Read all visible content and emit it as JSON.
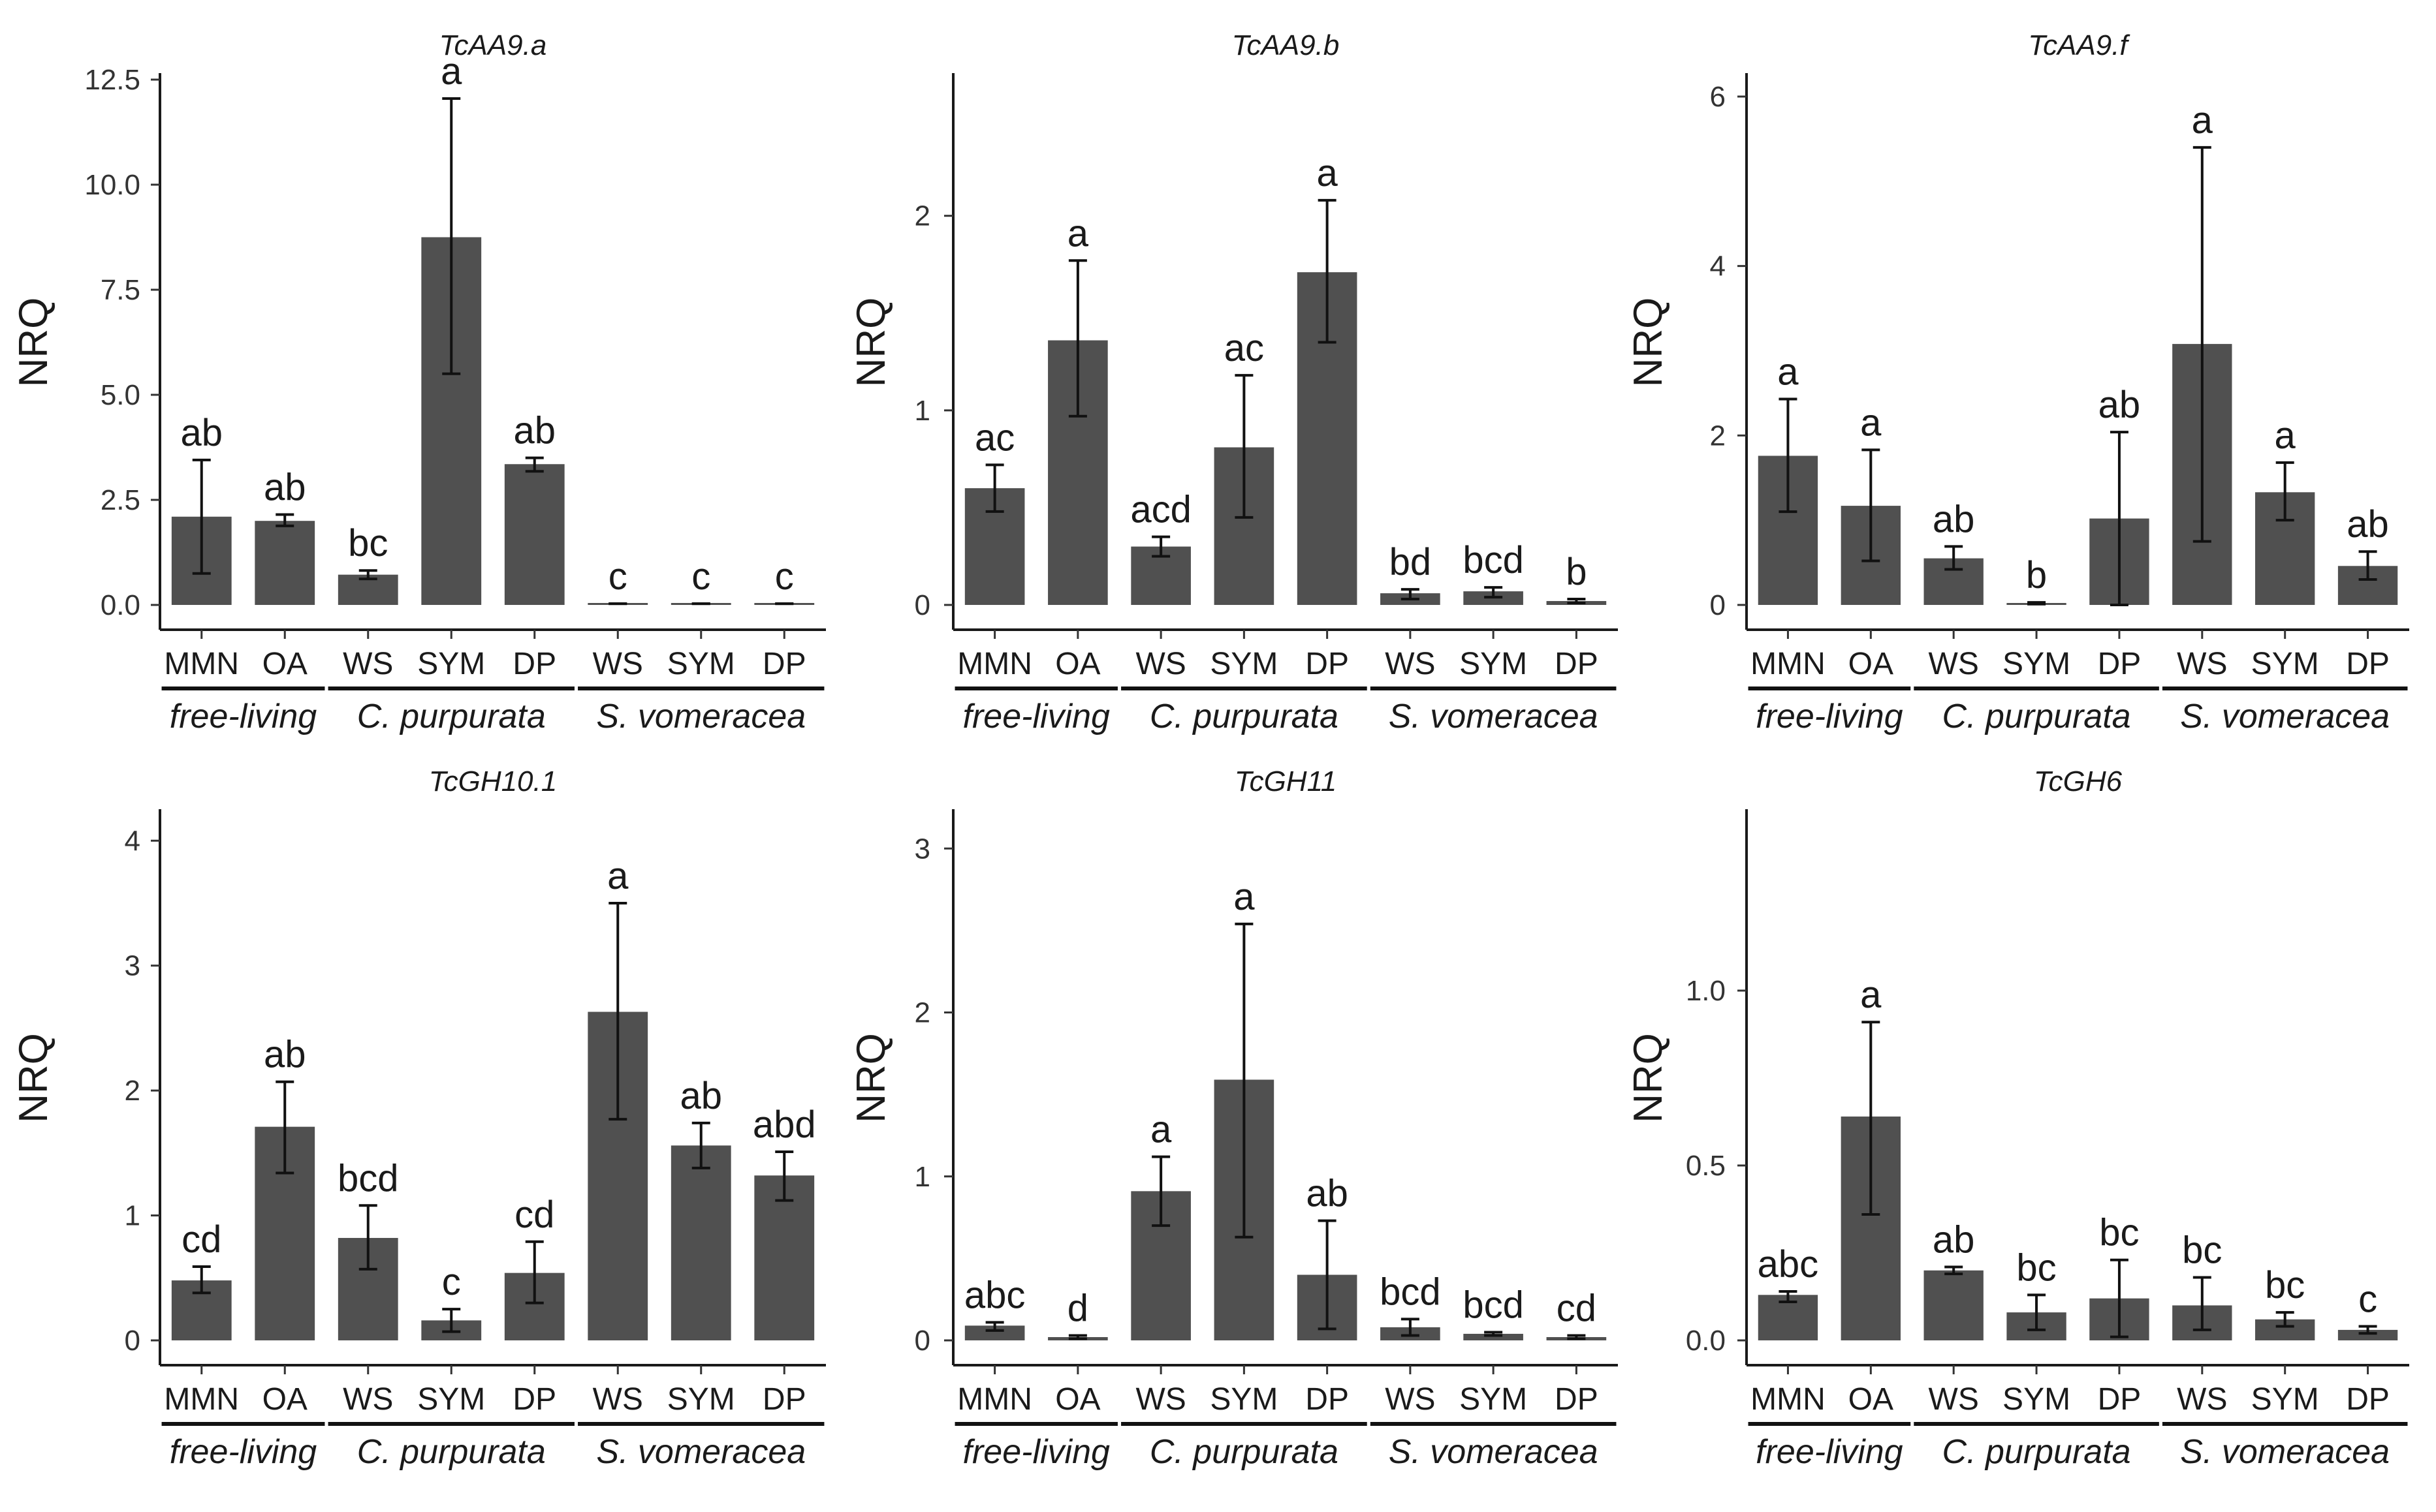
{
  "figure": {
    "y_axis_label": "NRQ",
    "x_tick_labels": [
      "MMN",
      "OA",
      "WS",
      "SYM",
      "DP",
      "WS",
      "SYM",
      "DP"
    ],
    "group_labels": [
      "free-living",
      "C. purpurata",
      "S. vomeracea"
    ],
    "bar_color": "#505050"
  },
  "chart_data": [
    {
      "type": "bar",
      "title": "TcAA9.a",
      "ylabel": "NRQ",
      "categories": [
        "MMN",
        "OA",
        "WS",
        "SYM",
        "DP",
        "WS",
        "SYM",
        "DP"
      ],
      "groups": [
        {
          "name": "free-living",
          "categories": [
            "MMN",
            "OA"
          ]
        },
        {
          "name": "C. purpurata",
          "categories": [
            "WS",
            "SYM",
            "DP"
          ]
        },
        {
          "name": "S. vomeracea",
          "categories": [
            "WS",
            "SYM",
            "DP"
          ]
        }
      ],
      "values": [
        2.1,
        2.0,
        0.72,
        8.75,
        3.35,
        0.03,
        0.03,
        0.03
      ],
      "err_low": [
        0.75,
        1.88,
        0.62,
        5.5,
        3.18,
        0.03,
        0.03,
        0.03
      ],
      "err_high": [
        3.45,
        2.15,
        0.82,
        12.05,
        3.5,
        0.03,
        0.03,
        0.03
      ],
      "letters": [
        "ab",
        "ab",
        "bc",
        "a",
        "ab",
        "c",
        "c",
        "c"
      ],
      "ylim": [
        0,
        12.5
      ],
      "yticks": [
        0.0,
        2.5,
        5.0,
        7.5,
        10.0,
        12.5
      ],
      "ytick_labels": [
        "0.0",
        "2.5",
        "5.0",
        "7.5",
        "10.0",
        "12.5"
      ]
    },
    {
      "type": "bar",
      "title": "TcAA9.b",
      "ylabel": "NRQ",
      "categories": [
        "MMN",
        "OA",
        "WS",
        "SYM",
        "DP",
        "WS",
        "SYM",
        "DP"
      ],
      "groups": [
        {
          "name": "free-living",
          "categories": [
            "MMN",
            "OA"
          ]
        },
        {
          "name": "C. purpurata",
          "categories": [
            "WS",
            "SYM",
            "DP"
          ]
        },
        {
          "name": "S. vomeracea",
          "categories": [
            "WS",
            "SYM",
            "DP"
          ]
        }
      ],
      "values": [
        0.6,
        1.36,
        0.3,
        0.81,
        1.71,
        0.06,
        0.07,
        0.02
      ],
      "err_low": [
        0.48,
        0.97,
        0.25,
        0.45,
        1.35,
        0.03,
        0.04,
        0.01
      ],
      "err_high": [
        0.72,
        1.77,
        0.35,
        1.18,
        2.08,
        0.08,
        0.09,
        0.03
      ],
      "letters": [
        "ac",
        "a",
        "acd",
        "ac",
        "a",
        "bd",
        "bcd",
        "b"
      ],
      "ylim": [
        0,
        2.7
      ],
      "yticks": [
        0,
        1,
        2
      ],
      "ytick_labels": [
        "0",
        "1",
        "2"
      ]
    },
    {
      "type": "bar",
      "title": "TcAA9.f",
      "ylabel": "NRQ",
      "categories": [
        "MMN",
        "OA",
        "WS",
        "SYM",
        "DP",
        "WS",
        "SYM",
        "DP"
      ],
      "groups": [
        {
          "name": "free-living",
          "categories": [
            "MMN",
            "OA"
          ]
        },
        {
          "name": "C. purpurata",
          "categories": [
            "WS",
            "SYM",
            "DP"
          ]
        },
        {
          "name": "S. vomeracea",
          "categories": [
            "WS",
            "SYM",
            "DP"
          ]
        }
      ],
      "values": [
        1.76,
        1.17,
        0.55,
        0.02,
        1.02,
        3.08,
        1.33,
        0.46
      ],
      "err_low": [
        1.1,
        0.52,
        0.42,
        0.01,
        0.0,
        0.75,
        1.0,
        0.3
      ],
      "err_high": [
        2.43,
        1.83,
        0.69,
        0.03,
        2.04,
        5.4,
        1.68,
        0.63
      ],
      "letters": [
        "a",
        "a",
        "ab",
        "b",
        "ab",
        "a",
        "a",
        "ab"
      ],
      "ylim": [
        0,
        6.2
      ],
      "yticks": [
        0,
        2,
        4,
        6
      ],
      "ytick_labels": [
        "0",
        "2",
        "4",
        "6"
      ]
    },
    {
      "type": "bar",
      "title": "TcGH10.1",
      "ylabel": "NRQ",
      "categories": [
        "MMN",
        "OA",
        "WS",
        "SYM",
        "DP",
        "WS",
        "SYM",
        "DP"
      ],
      "groups": [
        {
          "name": "free-living",
          "categories": [
            "MMN",
            "OA"
          ]
        },
        {
          "name": "C. purpurata",
          "categories": [
            "WS",
            "SYM",
            "DP"
          ]
        },
        {
          "name": "S. vomeracea",
          "categories": [
            "WS",
            "SYM",
            "DP"
          ]
        }
      ],
      "values": [
        0.48,
        1.71,
        0.82,
        0.16,
        0.54,
        2.63,
        1.56,
        1.32
      ],
      "err_low": [
        0.38,
        1.34,
        0.57,
        0.07,
        0.3,
        1.77,
        1.38,
        1.12
      ],
      "err_high": [
        0.59,
        2.07,
        1.08,
        0.25,
        0.79,
        3.5,
        1.74,
        1.51
      ],
      "letters": [
        "cd",
        "ab",
        "bcd",
        "c",
        "cd",
        "a",
        "ab",
        "abd"
      ],
      "ylim": [
        0,
        4.2
      ],
      "yticks": [
        0,
        1,
        2,
        3,
        4
      ],
      "ytick_labels": [
        "0",
        "1",
        "2",
        "3",
        "4"
      ]
    },
    {
      "type": "bar",
      "title": "TcGH11",
      "ylabel": "NRQ",
      "categories": [
        "MMN",
        "OA",
        "WS",
        "SYM",
        "DP",
        "WS",
        "SYM",
        "DP"
      ],
      "groups": [
        {
          "name": "free-living",
          "categories": [
            "MMN",
            "OA"
          ]
        },
        {
          "name": "C. purpurata",
          "categories": [
            "WS",
            "SYM",
            "DP"
          ]
        },
        {
          "name": "S. vomeracea",
          "categories": [
            "WS",
            "SYM",
            "DP"
          ]
        }
      ],
      "values": [
        0.09,
        0.02,
        0.91,
        1.59,
        0.4,
        0.08,
        0.04,
        0.02
      ],
      "err_low": [
        0.06,
        0.01,
        0.7,
        0.63,
        0.07,
        0.03,
        0.03,
        0.01
      ],
      "err_high": [
        0.11,
        0.03,
        1.12,
        2.54,
        0.73,
        0.13,
        0.05,
        0.03
      ],
      "letters": [
        "abc",
        "d",
        "a",
        "a",
        "ab",
        "bcd",
        "bcd",
        "cd"
      ],
      "ylim": [
        0,
        3.2
      ],
      "yticks": [
        0,
        1,
        2,
        3
      ],
      "ytick_labels": [
        "0",
        "1",
        "2",
        "3"
      ]
    },
    {
      "type": "bar",
      "title": "TcGH6",
      "ylabel": "NRQ",
      "categories": [
        "MMN",
        "OA",
        "WS",
        "SYM",
        "DP",
        "WS",
        "SYM",
        "DP"
      ],
      "groups": [
        {
          "name": "free-living",
          "categories": [
            "MMN",
            "OA"
          ]
        },
        {
          "name": "C. purpurata",
          "categories": [
            "WS",
            "SYM",
            "DP"
          ]
        },
        {
          "name": "S. vomeracea",
          "categories": [
            "WS",
            "SYM",
            "DP"
          ]
        }
      ],
      "values": [
        0.13,
        0.64,
        0.2,
        0.08,
        0.12,
        0.1,
        0.06,
        0.03
      ],
      "err_low": [
        0.11,
        0.36,
        0.19,
        0.03,
        0.01,
        0.03,
        0.04,
        0.02
      ],
      "err_high": [
        0.14,
        0.91,
        0.21,
        0.13,
        0.23,
        0.18,
        0.08,
        0.04
      ],
      "letters": [
        "abc",
        "a",
        "ab",
        "bc",
        "bc",
        "bc",
        "bc",
        "c"
      ],
      "ylim": [
        0,
        1.5
      ],
      "yticks": [
        0.0,
        0.5,
        1.0
      ],
      "ytick_labels": [
        "0.0",
        "0.5",
        "1.0"
      ]
    }
  ]
}
